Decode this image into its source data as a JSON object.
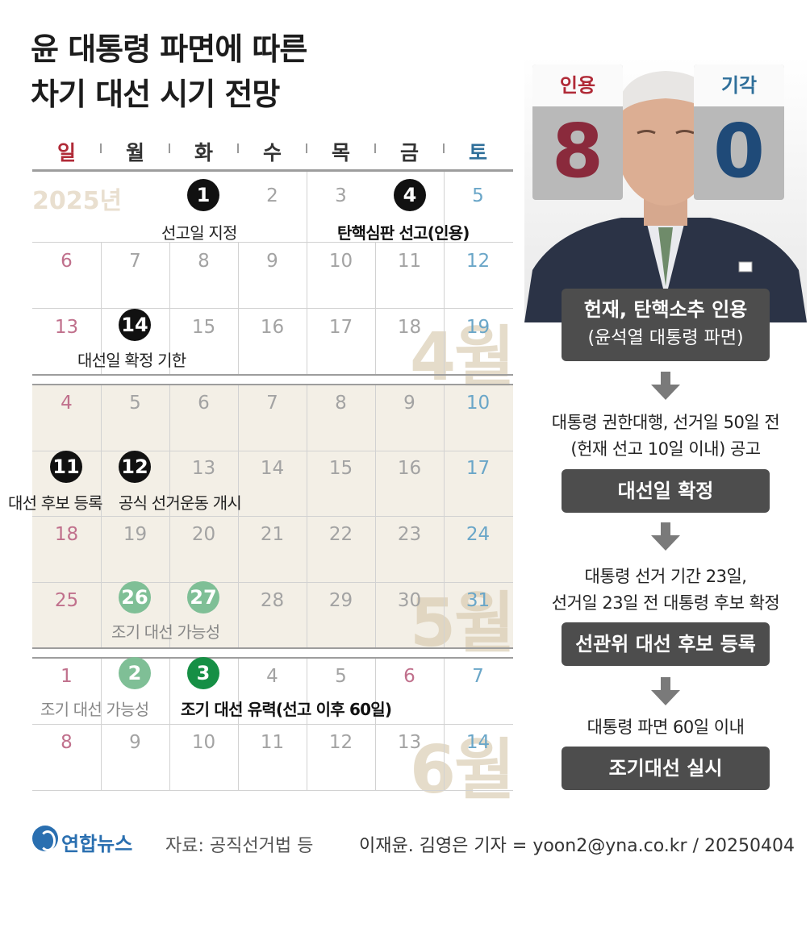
{
  "title": {
    "line1": "윤 대통령 파면에 따른",
    "line2": "차기 대선 시기 전망"
  },
  "weekdays": [
    "일",
    "월",
    "화",
    "수",
    "목",
    "금",
    "토"
  ],
  "colors": {
    "sunday": "#c0708c",
    "saturday": "#6aa6c8",
    "sunday_header": "#b02a37",
    "saturday_header": "#2f6f9a",
    "box_dark": "#4d4d4d",
    "green_dark": "#168f45",
    "green_light": "#7fbf96",
    "band_beige": "#f3efe6"
  },
  "calendar": {
    "year_label": "2025년",
    "months": {
      "april": "4월",
      "may": "5월",
      "june": "6월"
    },
    "weeks": [
      [
        "",
        "",
        "1",
        "2",
        "3",
        "4",
        "5"
      ],
      [
        "6",
        "7",
        "8",
        "9",
        "10",
        "11",
        "12"
      ],
      [
        "13",
        "14",
        "15",
        "16",
        "17",
        "18",
        "19"
      ],
      [
        "4",
        "5",
        "6",
        "7",
        "8",
        "9",
        "10"
      ],
      [
        "11",
        "12",
        "13",
        "14",
        "15",
        "16",
        "17"
      ],
      [
        "18",
        "19",
        "20",
        "21",
        "22",
        "23",
        "24"
      ],
      [
        "25",
        "26",
        "27",
        "28",
        "29",
        "30",
        "31"
      ],
      [
        "1",
        "2",
        "3",
        "4",
        "5",
        "6",
        "7"
      ],
      [
        "8",
        "9",
        "10",
        "11",
        "12",
        "13",
        "14"
      ]
    ],
    "events": {
      "apr1": {
        "day": "1",
        "label": "선고일 지정"
      },
      "apr4": {
        "day": "4",
        "label": "탄핵심판 선고(인용)"
      },
      "apr14": {
        "day": "14",
        "label": "대선일 확정 기한"
      },
      "may11": {
        "day": "11",
        "label": "대선 후보 등록"
      },
      "may12": {
        "day": "12",
        "label": "공식 선거운동 개시"
      },
      "may26": {
        "day": "26"
      },
      "may27": {
        "day": "27"
      },
      "may_label": "조기 대선 가능성",
      "jun2": {
        "day": "2",
        "label": "조기 대선 가능성"
      },
      "jun3": {
        "day": "3",
        "label": "조기 대선 유력(선고 이후 60일)"
      }
    }
  },
  "verdict": {
    "accept_label": "인용",
    "accept_count": "8",
    "dismiss_label": "기각",
    "dismiss_count": "0"
  },
  "flow": {
    "step1": {
      "line1": "헌재, 탄핵소추 인용",
      "line2": "(윤석열 대통령 파면)"
    },
    "note1": {
      "line1": "대통령 권한대행, 선거일 50일 전",
      "line2": "(헌재 선고 10일 이내) 공고"
    },
    "step2": "대선일 확정",
    "note2": {
      "line1": "대통령 선거 기간 23일,",
      "line2": "선거일 23일 전 대통령 후보 확정"
    },
    "step3": "선관위 대선 후보 등록",
    "note3": "대통령 파면 60일 이내",
    "step4": "조기대선 실시"
  },
  "footer": {
    "logo": "연합뉴스",
    "source": "자료: 공직선거법 등",
    "credit": "이재윤. 김영은 기자 = yoon2@yna.co.kr / 20250404"
  }
}
